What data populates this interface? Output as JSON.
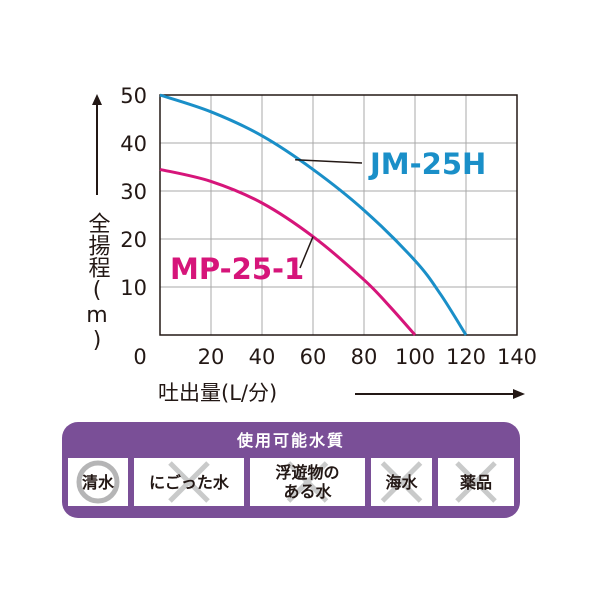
{
  "chart_data": {
    "type": "line",
    "xlabel": "吐出量(L/分)",
    "ylabel": "全揚程(m)",
    "xlim": [
      0,
      140
    ],
    "ylim": [
      0,
      50
    ],
    "x_ticks": [
      "0",
      "20",
      "40",
      "60",
      "80",
      "100",
      "120",
      "140"
    ],
    "y_ticks": [
      "10",
      "20",
      "30",
      "40",
      "50"
    ],
    "grid": true,
    "series": [
      {
        "name": "JM-25H",
        "color": "#1a8fc8",
        "x": [
          0,
          20,
          40,
          60,
          80,
          100,
          110,
          120
        ],
        "y": [
          50,
          46.5,
          41.5,
          34.5,
          26,
          15.5,
          8.5,
          0
        ]
      },
      {
        "name": "MP-25-1",
        "color": "#d6157a",
        "x": [
          0,
          20,
          40,
          60,
          80,
          90,
          100
        ],
        "y": [
          34.5,
          32,
          27.5,
          20.5,
          11.5,
          6,
          0
        ]
      }
    ]
  },
  "usage_table": {
    "title": "使用可能水質",
    "header_color": "#7a4f97",
    "items": [
      {
        "label": "清水",
        "mark": "circle"
      },
      {
        "label": "にごった水",
        "mark": "cross"
      },
      {
        "label": "浮遊物の\nある水",
        "mark": "cross"
      },
      {
        "label": "海水",
        "mark": "cross"
      },
      {
        "label": "薬品",
        "mark": "cross"
      }
    ]
  }
}
